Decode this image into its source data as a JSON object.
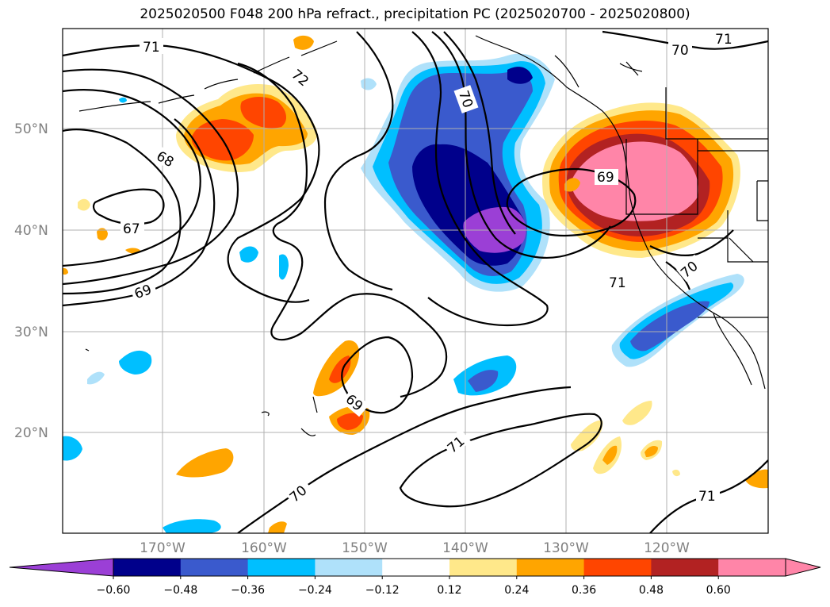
{
  "title": "2025020500 F048 200 hPa refract., precipitation PC (2025020700 - 2025020800)",
  "lat_labels": [
    "50°N",
    "40°N",
    "30°N",
    "20°N"
  ],
  "lon_labels": [
    "170°W",
    "160°W",
    "150°W",
    "140°W",
    "130°W",
    "120°W"
  ],
  "contour_labels": [
    "71",
    "72",
    "70",
    "71",
    "70",
    "68",
    "67",
    "69",
    "69",
    "69",
    "71",
    "70",
    "71",
    "70",
    "71"
  ],
  "colorbar": {
    "ticks": [
      "−0.60",
      "−0.48",
      "−0.36",
      "−0.24",
      "−0.12",
      "0.12",
      "0.24",
      "0.36",
      "0.48",
      "0.60"
    ],
    "colors": [
      "#9b3fd6",
      "#00008b",
      "#3a5acd",
      "#00bfff",
      "#afe1fa",
      "#ffffff",
      "#ffe88a",
      "#ffa500",
      "#ff4500",
      "#b22222",
      "#ff85a8",
      "#ff85a8"
    ]
  }
}
